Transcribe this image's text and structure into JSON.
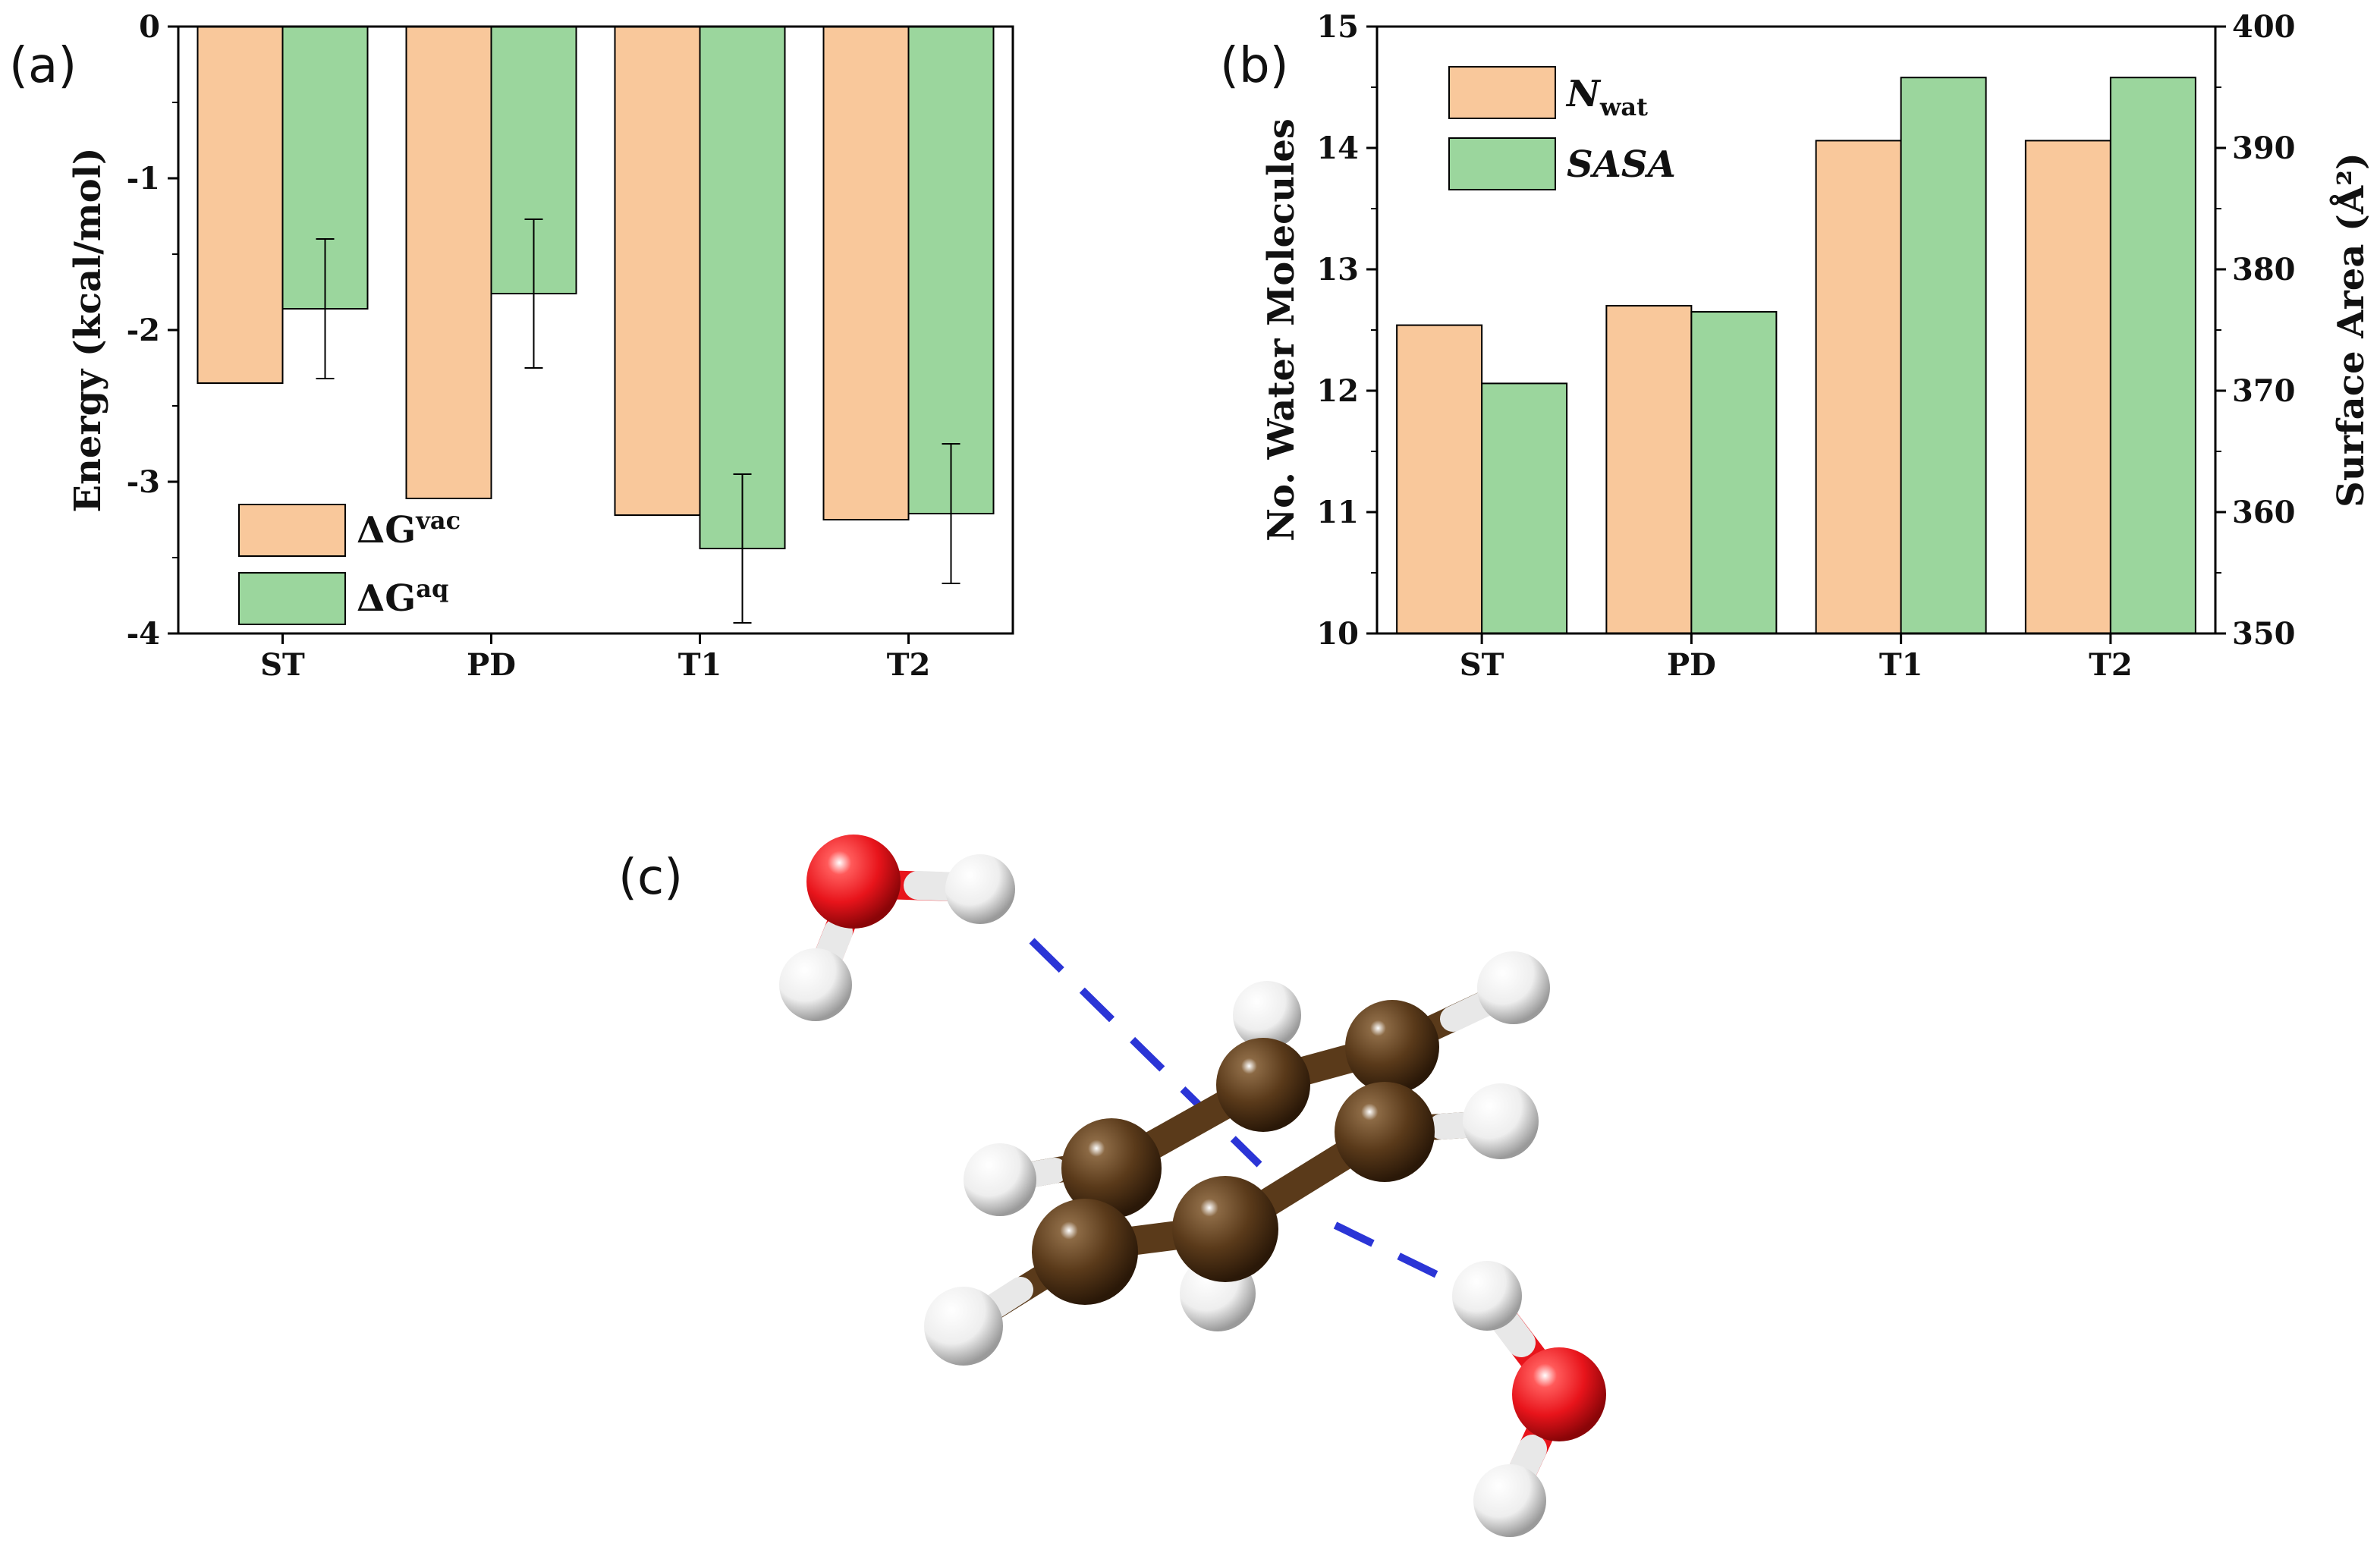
{
  "panels": {
    "a": "(a)",
    "b": "(b)",
    "c": "(c)"
  },
  "colors": {
    "vac": "#F9C89B",
    "aq": "#9BD69D",
    "oxygen": "#E8141B",
    "carbon": "#5A3A1A",
    "hydrogen": "#F2F2F2",
    "hbond": "#2B35D6"
  },
  "legend_a": [
    {
      "symbol": "ΔG",
      "sup": "vac"
    },
    {
      "symbol": "ΔG",
      "sup": "aq"
    }
  ],
  "legend_b": [
    {
      "symbol": "N",
      "sub": "wat"
    },
    {
      "symbol": "SASA"
    }
  ],
  "molecule_c": {
    "description_icons": [
      "water-molecule",
      "benzene-molecule",
      "water-molecule"
    ]
  },
  "chart_data": [
    {
      "type": "bar",
      "panel": "(a)",
      "categories": [
        "ST",
        "PD",
        "T1",
        "T2"
      ],
      "series": [
        {
          "name": "ΔGvac",
          "values": [
            -2.35,
            -3.11,
            -3.22,
            -3.25
          ]
        },
        {
          "name": "ΔGaq",
          "values": [
            -1.86,
            -1.76,
            -3.44,
            -3.21
          ],
          "errors": [
            0.46,
            0.49,
            0.49,
            0.46
          ]
        }
      ],
      "ylabel": "Energy (kcal/mol)",
      "ylim": [
        -4,
        0
      ],
      "yticks": [
        0,
        -1,
        -2,
        -3,
        -4
      ],
      "legend": "bottom-left"
    },
    {
      "type": "bar",
      "panel": "(b)",
      "categories": [
        "ST",
        "PD",
        "T1",
        "T2"
      ],
      "series": [
        {
          "name": "Nwat",
          "axis": "left",
          "values": [
            12.54,
            12.7,
            14.06,
            14.06
          ]
        },
        {
          "name": "SASA",
          "axis": "right",
          "values": [
            370.6,
            376.5,
            395.8,
            395.8
          ]
        }
      ],
      "ylabel": "No. Water Molecules",
      "ylim": [
        10,
        15
      ],
      "yticks": [
        10,
        11,
        12,
        13,
        14,
        15
      ],
      "ylabel_right": "Surface Area (Å²)",
      "ylim_right": [
        350,
        400
      ],
      "yticks_right": [
        350,
        360,
        370,
        380,
        390,
        400
      ],
      "legend": "top-left"
    }
  ]
}
